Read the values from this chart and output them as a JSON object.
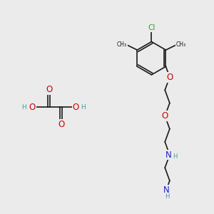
{
  "bg_color": "#ebebeb",
  "bond_color": "#1a1a1a",
  "bond_width": 1.2,
  "atom_colors": {
    "C": "#1a1a1a",
    "H": "#4a9a9a",
    "O": "#cc0000",
    "N": "#2222cc",
    "Cl": "#22aa22"
  },
  "font_size_atom": 7.5,
  "font_size_small": 6.5,
  "font_size_methyl": 6.0
}
